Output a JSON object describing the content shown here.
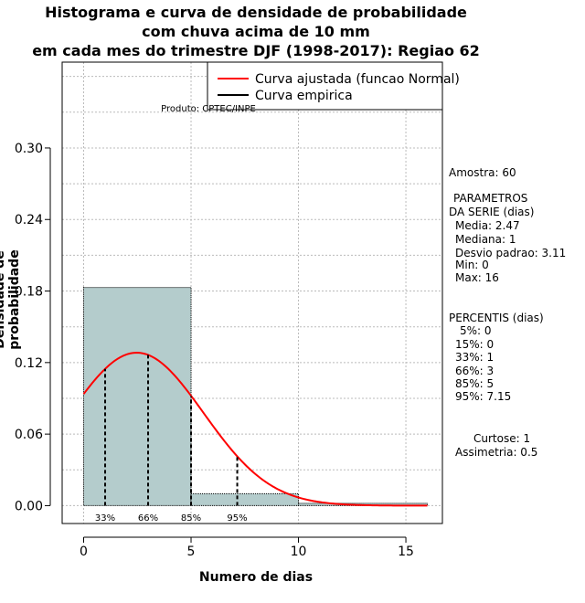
{
  "title_lines": [
    "Histograma e curva de densidade de probabilidade",
    "com chuva acima de 10 mm",
    "em cada mes do trimestre DJF (1998-2017): Regiao 62"
  ],
  "product": "Produto: CPTEC/INPE",
  "stats": {
    "amostra": "Amostra: 60",
    "params_header_1": "PARAMETROS",
    "params_header_2": "DA SERIE (dias)",
    "media": "Media: 2.47",
    "mediana": "Mediana: 1",
    "desvio": "Desvio padrao: 3.11",
    "min": "Min: 0",
    "max": "Max: 16",
    "percentis_header": "PERCENTIS (dias)",
    "p5": "5%: 0",
    "p15": "15%: 0",
    "p33": "33%: 1",
    "p66": "66%: 3",
    "p85": "85%: 5",
    "p95": "95%: 7.15",
    "curtose": "Curtose: 1",
    "assimetria": "Assimetria: 0.5"
  },
  "chart_data": {
    "type": "bar",
    "title": "Histograma e curva de densidade de probabilidade com chuva acima de 10 mm em cada mes do trimestre DJF (1998-2017): Regiao 62",
    "xlabel": "Numero de dias",
    "ylabel": "Densidade de probabilidade",
    "xlim": [
      -1,
      16.7
    ],
    "ylim": [
      -0.015,
      0.372
    ],
    "xticks": [
      0,
      5,
      10,
      15
    ],
    "yticks": [
      0.0,
      0.06,
      0.12,
      0.18,
      0.24,
      0.3
    ],
    "ytick_labels": [
      "0.00",
      "0.06",
      "0.12",
      "0.18",
      "0.24",
      "0.30"
    ],
    "grid": true,
    "bins": [
      {
        "x0": 0,
        "x1": 5,
        "density": 0.183
      },
      {
        "x0": 5,
        "x1": 10,
        "density": 0.01
      },
      {
        "x0": 10,
        "x1": 16,
        "density": 0.002
      }
    ],
    "series": [
      {
        "name": "Curva ajustada (funcao Normal)",
        "type": "normal",
        "mean": 2.47,
        "sd": 3.11,
        "x_range": [
          0,
          16
        ],
        "color": "#ff0000"
      },
      {
        "name": "Curva empirica",
        "color": "#000000"
      }
    ],
    "percentile_lines": [
      {
        "label": "33%",
        "x": 1
      },
      {
        "label": "66%",
        "x": 3
      },
      {
        "label": "85%",
        "x": 5
      },
      {
        "label": "95%",
        "x": 7.15
      }
    ],
    "legend_position": "top-right",
    "colors": {
      "bar_fill": "#b4cccc",
      "fitted_curve": "#ff0000",
      "grid": "#bbbbbb"
    }
  }
}
